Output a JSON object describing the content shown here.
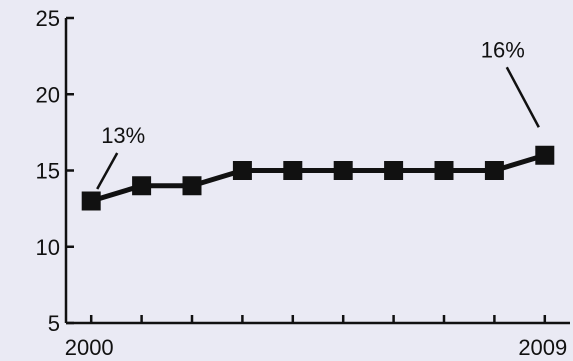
{
  "chart_data": {
    "type": "line",
    "x": [
      2000,
      2001,
      2002,
      2003,
      2004,
      2005,
      2006,
      2007,
      2008,
      2009
    ],
    "series": [
      {
        "values": [
          13,
          14,
          14,
          15,
          15,
          15,
          15,
          15,
          15,
          16
        ]
      }
    ],
    "xlim": [
      1999.5,
      2009.5
    ],
    "ylim": [
      5,
      25
    ],
    "y_ticks": [
      "5",
      "10",
      "15",
      "20",
      "25"
    ],
    "x_tick_labels": [
      "2000",
      "2009"
    ],
    "title": "",
    "xlabel": "",
    "ylabel": "",
    "grid": false,
    "annotations": [
      {
        "text": "13%",
        "x": 2000,
        "y": 13
      },
      {
        "text": "16%",
        "x": 2009,
        "y": 16
      }
    ],
    "marker": "square",
    "colors": {
      "background": "#eaeaf4",
      "line": "#111111",
      "axis": "#111111"
    }
  }
}
